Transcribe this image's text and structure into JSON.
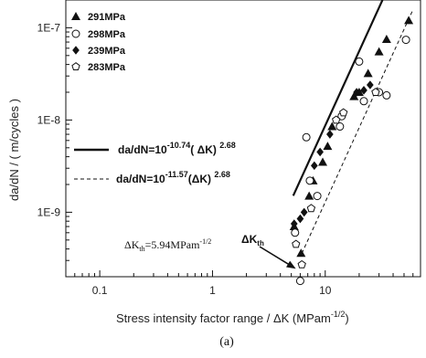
{
  "chart_data": {
    "type": "scatter",
    "x_scale": "log",
    "y_scale": "log",
    "xlim": [
      0.05,
      70
    ],
    "ylim": [
      2e-10,
      2e-07
    ],
    "xticks": [
      {
        "value": 0.1,
        "label": "0.1"
      },
      {
        "value": 1,
        "label": "1"
      },
      {
        "value": 10,
        "label": "10"
      }
    ],
    "yticks": [
      {
        "value": 1e-09,
        "label": "1E-9"
      },
      {
        "value": 1e-08,
        "label": "1E-8"
      },
      {
        "value": 1e-07,
        "label": "1E-7"
      }
    ],
    "xlabel": {
      "main": "Stress intensity factor range / ΔK (MPam",
      "sup": "-1/2",
      "tail": ")"
    },
    "ylabel": "da/dN / ( m/cycles )",
    "caption": "(a)",
    "legend": {
      "placement": "top-left",
      "entries": [
        {
          "label": "291MPa",
          "marker": "triangle-filled"
        },
        {
          "label": "298MPa",
          "marker": "circle-open"
        },
        {
          "label": "239MPa",
          "marker": "diamond-filled"
        },
        {
          "label": "283MPa",
          "marker": "pentagon-open"
        }
      ]
    },
    "series": [
      {
        "name": "291MPa",
        "marker": "triangle-filled",
        "points": [
          [
            5.3,
            7e-10
          ],
          [
            6.1,
            3.6e-10
          ],
          [
            7.2,
            1.5e-09
          ],
          [
            7.8,
            2.2e-09
          ],
          [
            9.5,
            3.5e-09
          ],
          [
            10.5,
            5.2e-09
          ],
          [
            11.5,
            8.5e-09
          ],
          [
            18,
            1.8e-08
          ],
          [
            20,
            2e-08
          ],
          [
            24,
            3.2e-08
          ],
          [
            30,
            5.5e-08
          ],
          [
            35,
            7.5e-08
          ],
          [
            55,
            1.2e-07
          ]
        ]
      },
      {
        "name": "298MPa",
        "marker": "circle-open",
        "points": [
          [
            6,
            1.8e-10
          ],
          [
            5.4,
            6e-10
          ],
          [
            6.8,
            6.5e-09
          ],
          [
            7.3,
            2.2e-09
          ],
          [
            8.5,
            1.5e-09
          ],
          [
            13.5,
            8.5e-09
          ],
          [
            14,
            1.1e-08
          ],
          [
            20,
            4.3e-08
          ],
          [
            22,
            1.6e-08
          ],
          [
            30,
            2e-08
          ],
          [
            35,
            1.85e-08
          ],
          [
            52,
            7.4e-08
          ]
        ]
      },
      {
        "name": "239MPa",
        "marker": "diamond-filled",
        "points": [
          [
            5.3,
            7.5e-10
          ],
          [
            6,
            8.5e-10
          ],
          [
            6.5,
            1e-09
          ],
          [
            8,
            3.2e-09
          ],
          [
            9,
            4.5e-09
          ],
          [
            11,
            7e-09
          ],
          [
            19,
            2e-08
          ],
          [
            22,
            2.1e-08
          ],
          [
            25,
            2.4e-08
          ]
        ]
      },
      {
        "name": "283MPa",
        "marker": "pentagon-open",
        "points": [
          [
            5.5,
            4.5e-10
          ],
          [
            6.2,
            2.7e-10
          ],
          [
            7.5,
            1.1e-09
          ],
          [
            12.5,
            1e-08
          ],
          [
            14.5,
            1.2e-08
          ],
          [
            28,
            2e-08
          ]
        ]
      }
    ],
    "fit_lines": [
      {
        "style": "solid",
        "label_main": "da/dN=10",
        "exponent": "-10.74",
        "label_tail": "( ΔK) ",
        "power": "2.68",
        "log_c": -10.74,
        "m": 2.68,
        "x_range": [
          5.2,
          50
        ]
      },
      {
        "style": "dashed",
        "label_main": "da/dN=10",
        "exponent": "-11.57",
        "label_tail": "(ΔK) ",
        "power": "2.68",
        "log_c": -11.57,
        "m": 2.68,
        "x_range": [
          6.2,
          60
        ]
      }
    ],
    "threshold": {
      "label_main": "ΔK",
      "label_sub": "th",
      "label_eq": "=5.94MPam",
      "label_sup": "-1/2",
      "arrow_main": "ΔK",
      "arrow_sub": "th",
      "x": 5.94,
      "y": 2.3e-10
    }
  }
}
